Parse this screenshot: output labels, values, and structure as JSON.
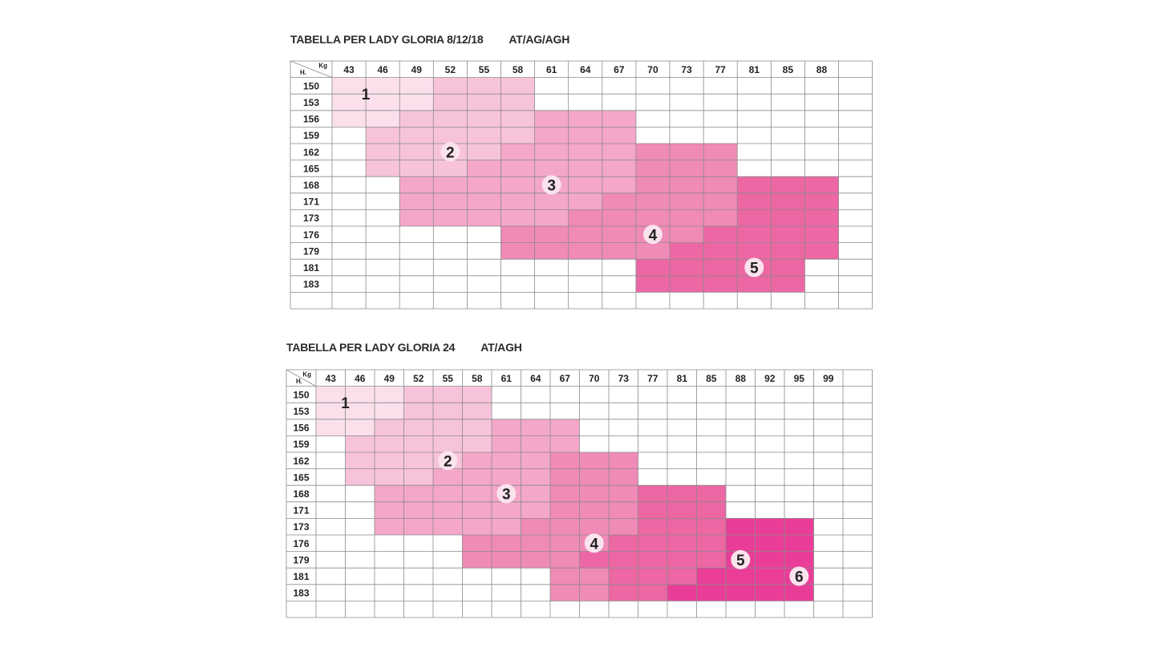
{
  "chart_data": [
    {
      "type": "table",
      "title": "TABELLA PER LADY GLORIA 8/12/18",
      "code": "AT/AG/AGH",
      "xlabel": "Kg",
      "ylabel": "H.",
      "weights": [
        "43",
        "46",
        "49",
        "52",
        "55",
        "58",
        "61",
        "64",
        "67",
        "70",
        "73",
        "77",
        "81",
        "85",
        "88"
      ],
      "heights": [
        "150",
        "153",
        "156",
        "159",
        "162",
        "165",
        "168",
        "171",
        "173",
        "176",
        "179",
        "181",
        "183"
      ],
      "zones": [
        {
          "size": "1",
          "cells": [
            [
              0,
              0
            ],
            [
              0,
              1
            ],
            [
              0,
              2
            ],
            [
              1,
              0
            ],
            [
              1,
              1
            ],
            [
              1,
              2
            ],
            [
              2,
              0
            ],
            [
              2,
              1
            ]
          ]
        },
        {
          "size": "2",
          "cells": [
            [
              0,
              3
            ],
            [
              0,
              4
            ],
            [
              0,
              5
            ],
            [
              1,
              3
            ],
            [
              1,
              4
            ],
            [
              1,
              5
            ],
            [
              2,
              2
            ],
            [
              2,
              3
            ],
            [
              2,
              4
            ],
            [
              2,
              5
            ],
            [
              3,
              1
            ],
            [
              3,
              2
            ],
            [
              3,
              3
            ],
            [
              3,
              4
            ],
            [
              3,
              5
            ],
            [
              4,
              1
            ],
            [
              4,
              2
            ],
            [
              4,
              3
            ],
            [
              4,
              4
            ],
            [
              5,
              1
            ],
            [
              5,
              2
            ],
            [
              5,
              3
            ]
          ]
        },
        {
          "size": "3",
          "cells": [
            [
              2,
              6
            ],
            [
              2,
              7
            ],
            [
              2,
              8
            ],
            [
              3,
              6
            ],
            [
              3,
              7
            ],
            [
              3,
              8
            ],
            [
              4,
              5
            ],
            [
              4,
              6
            ],
            [
              4,
              7
            ],
            [
              4,
              8
            ],
            [
              5,
              4
            ],
            [
              5,
              5
            ],
            [
              5,
              6
            ],
            [
              5,
              7
            ],
            [
              5,
              8
            ],
            [
              6,
              2
            ],
            [
              6,
              3
            ],
            [
              6,
              4
            ],
            [
              6,
              5
            ],
            [
              6,
              6
            ],
            [
              6,
              7
            ],
            [
              6,
              8
            ],
            [
              7,
              2
            ],
            [
              7,
              3
            ],
            [
              7,
              4
            ],
            [
              7,
              5
            ],
            [
              7,
              6
            ],
            [
              7,
              7
            ],
            [
              8,
              2
            ],
            [
              8,
              3
            ],
            [
              8,
              4
            ],
            [
              8,
              5
            ],
            [
              8,
              6
            ]
          ]
        },
        {
          "size": "4",
          "cells": [
            [
              4,
              9
            ],
            [
              4,
              10
            ],
            [
              4,
              11
            ],
            [
              5,
              9
            ],
            [
              5,
              10
            ],
            [
              5,
              11
            ],
            [
              6,
              9
            ],
            [
              6,
              10
            ],
            [
              6,
              11
            ],
            [
              7,
              8
            ],
            [
              7,
              9
            ],
            [
              7,
              10
            ],
            [
              7,
              11
            ],
            [
              8,
              7
            ],
            [
              8,
              8
            ],
            [
              8,
              9
            ],
            [
              8,
              10
            ],
            [
              8,
              11
            ],
            [
              9,
              5
            ],
            [
              9,
              6
            ],
            [
              9,
              7
            ],
            [
              9,
              8
            ],
            [
              9,
              9
            ],
            [
              9,
              10
            ],
            [
              10,
              5
            ],
            [
              10,
              6
            ],
            [
              10,
              7
            ],
            [
              10,
              8
            ],
            [
              10,
              9
            ]
          ]
        },
        {
          "size": "5",
          "cells": [
            [
              6,
              12
            ],
            [
              6,
              13
            ],
            [
              6,
              14
            ],
            [
              7,
              12
            ],
            [
              7,
              13
            ],
            [
              7,
              14
            ],
            [
              8,
              12
            ],
            [
              8,
              13
            ],
            [
              8,
              14
            ],
            [
              9,
              11
            ],
            [
              9,
              12
            ],
            [
              9,
              13
            ],
            [
              9,
              14
            ],
            [
              10,
              10
            ],
            [
              10,
              11
            ],
            [
              10,
              12
            ],
            [
              10,
              13
            ],
            [
              10,
              14
            ],
            [
              11,
              9
            ],
            [
              11,
              10
            ],
            [
              11,
              11
            ],
            [
              11,
              12
            ],
            [
              11,
              13
            ],
            [
              12,
              9
            ],
            [
              12,
              10
            ],
            [
              12,
              11
            ],
            [
              12,
              12
            ],
            [
              12,
              13
            ]
          ]
        }
      ]
    },
    {
      "type": "table",
      "title": "TABELLA PER LADY GLORIA 24",
      "code": "AT/AGH",
      "xlabel": "Kg",
      "ylabel": "H.",
      "weights": [
        "43",
        "46",
        "49",
        "52",
        "55",
        "58",
        "61",
        "64",
        "67",
        "70",
        "73",
        "77",
        "81",
        "85",
        "88",
        "92",
        "95",
        "99"
      ],
      "heights": [
        "150",
        "153",
        "156",
        "159",
        "162",
        "165",
        "168",
        "171",
        "173",
        "176",
        "179",
        "181",
        "183"
      ],
      "zones": [
        {
          "size": "1",
          "cells": [
            [
              0,
              0
            ],
            [
              0,
              1
            ],
            [
              0,
              2
            ],
            [
              1,
              0
            ],
            [
              1,
              1
            ],
            [
              1,
              2
            ],
            [
              2,
              0
            ],
            [
              2,
              1
            ]
          ]
        },
        {
          "size": "2",
          "cells": [
            [
              0,
              3
            ],
            [
              0,
              4
            ],
            [
              0,
              5
            ],
            [
              1,
              3
            ],
            [
              1,
              4
            ],
            [
              1,
              5
            ],
            [
              2,
              2
            ],
            [
              2,
              3
            ],
            [
              2,
              4
            ],
            [
              2,
              5
            ],
            [
              3,
              1
            ],
            [
              3,
              2
            ],
            [
              3,
              3
            ],
            [
              3,
              4
            ],
            [
              3,
              5
            ],
            [
              4,
              1
            ],
            [
              4,
              2
            ],
            [
              4,
              3
            ],
            [
              4,
              4
            ],
            [
              5,
              1
            ],
            [
              5,
              2
            ],
            [
              5,
              3
            ]
          ]
        },
        {
          "size": "3",
          "cells": [
            [
              2,
              6
            ],
            [
              2,
              7
            ],
            [
              2,
              8
            ],
            [
              3,
              6
            ],
            [
              3,
              7
            ],
            [
              3,
              8
            ],
            [
              4,
              5
            ],
            [
              4,
              6
            ],
            [
              4,
              7
            ],
            [
              5,
              4
            ],
            [
              5,
              5
            ],
            [
              5,
              6
            ],
            [
              5,
              7
            ],
            [
              6,
              2
            ],
            [
              6,
              3
            ],
            [
              6,
              4
            ],
            [
              6,
              5
            ],
            [
              6,
              6
            ],
            [
              6,
              7
            ],
            [
              7,
              2
            ],
            [
              7,
              3
            ],
            [
              7,
              4
            ],
            [
              7,
              5
            ],
            [
              7,
              6
            ],
            [
              7,
              7
            ],
            [
              8,
              2
            ],
            [
              8,
              3
            ],
            [
              8,
              4
            ],
            [
              8,
              5
            ],
            [
              8,
              6
            ]
          ]
        },
        {
          "size": "4",
          "cells": [
            [
              4,
              8
            ],
            [
              4,
              9
            ],
            [
              4,
              10
            ],
            [
              5,
              8
            ],
            [
              5,
              9
            ],
            [
              5,
              10
            ],
            [
              6,
              8
            ],
            [
              6,
              9
            ],
            [
              6,
              10
            ],
            [
              7,
              8
            ],
            [
              7,
              9
            ],
            [
              7,
              10
            ],
            [
              8,
              7
            ],
            [
              8,
              8
            ],
            [
              8,
              9
            ],
            [
              8,
              10
            ],
            [
              9,
              5
            ],
            [
              9,
              6
            ],
            [
              9,
              7
            ],
            [
              9,
              8
            ],
            [
              9,
              9
            ],
            [
              10,
              5
            ],
            [
              10,
              6
            ],
            [
              10,
              7
            ],
            [
              10,
              8
            ],
            [
              11,
              8
            ],
            [
              11,
              9
            ],
            [
              12,
              8
            ],
            [
              12,
              9
            ]
          ]
        },
        {
          "size": "5",
          "cells": [
            [
              6,
              11
            ],
            [
              6,
              12
            ],
            [
              6,
              13
            ],
            [
              7,
              11
            ],
            [
              7,
              12
            ],
            [
              7,
              13
            ],
            [
              8,
              11
            ],
            [
              8,
              12
            ],
            [
              8,
              13
            ],
            [
              9,
              10
            ],
            [
              9,
              11
            ],
            [
              9,
              12
            ],
            [
              9,
              13
            ],
            [
              10,
              9
            ],
            [
              10,
              10
            ],
            [
              10,
              11
            ],
            [
              10,
              12
            ],
            [
              10,
              13
            ],
            [
              11,
              10
            ],
            [
              11,
              11
            ],
            [
              11,
              12
            ],
            [
              12,
              10
            ],
            [
              12,
              11
            ]
          ]
        },
        {
          "size": "6",
          "cells": [
            [
              8,
              14
            ],
            [
              8,
              15
            ],
            [
              8,
              16
            ],
            [
              9,
              14
            ],
            [
              9,
              15
            ],
            [
              9,
              16
            ],
            [
              10,
              14
            ],
            [
              10,
              15
            ],
            [
              10,
              16
            ],
            [
              11,
              13
            ],
            [
              11,
              14
            ],
            [
              11,
              15
            ],
            [
              11,
              16
            ],
            [
              12,
              12
            ],
            [
              12,
              13
            ],
            [
              12,
              14
            ],
            [
              12,
              15
            ],
            [
              12,
              16
            ]
          ]
        }
      ]
    }
  ],
  "zone_colors": {
    "1": "#fbe0ec",
    "2": "#f7c3da",
    "3": "#f4a7c9",
    "4": "#f08ab7",
    "5": "#ec67a4",
    "6": "#ea3d97"
  },
  "zone_label_bg": "#fbe3ee",
  "grid_color": "#8a8a8a"
}
